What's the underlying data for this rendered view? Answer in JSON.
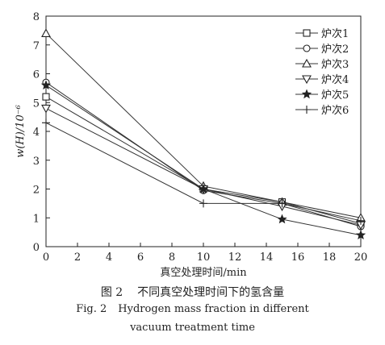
{
  "chart_data": {
    "type": "line",
    "title": "",
    "xlabel": "真空处理时间/min",
    "ylabel": "w(H)/10⁻⁶",
    "xlim": [
      0,
      20
    ],
    "ylim": [
      0,
      8
    ],
    "xticks": [
      0,
      2,
      4,
      6,
      8,
      10,
      12,
      14,
      16,
      18,
      20
    ],
    "yticks": [
      0,
      1,
      2,
      3,
      4,
      5,
      6,
      7,
      8
    ],
    "grid": false,
    "legend_position": "top-right",
    "series": [
      {
        "name": "炉次1",
        "marker": "square",
        "points": [
          [
            0,
            5.2
          ],
          [
            10,
            2.0
          ],
          [
            15,
            1.55
          ],
          [
            20,
            0.8
          ]
        ]
      },
      {
        "name": "炉次2",
        "marker": "circle",
        "points": [
          [
            0,
            5.7
          ],
          [
            10,
            1.95
          ],
          [
            15,
            1.5
          ],
          [
            20,
            0.7
          ]
        ]
      },
      {
        "name": "炉次3",
        "marker": "triangle-up",
        "points": [
          [
            0,
            7.4
          ],
          [
            10,
            2.1
          ],
          [
            15,
            1.55
          ],
          [
            20,
            1.0
          ]
        ]
      },
      {
        "name": "炉次4",
        "marker": "triangle-down",
        "points": [
          [
            0,
            4.8
          ],
          [
            10,
            2.0
          ],
          [
            15,
            1.4
          ],
          [
            20,
            0.75
          ]
        ]
      },
      {
        "name": "炉次5",
        "marker": "star",
        "points": [
          [
            0,
            5.6
          ],
          [
            10,
            2.0
          ],
          [
            15,
            0.95
          ],
          [
            20,
            0.4
          ]
        ]
      },
      {
        "name": "炉次6",
        "marker": "plus",
        "points": [
          [
            0,
            4.3
          ],
          [
            10,
            1.5
          ],
          [
            15,
            1.5
          ],
          [
            20,
            0.9
          ]
        ]
      }
    ]
  },
  "caption": {
    "zh_label": "图 2",
    "zh_text": "不同真空处理时间下的氢含量",
    "en_label": "Fig. 2",
    "en_text_line1": "Hydrogen mass fraction in different",
    "en_text_line2": "vacuum treatment time"
  }
}
